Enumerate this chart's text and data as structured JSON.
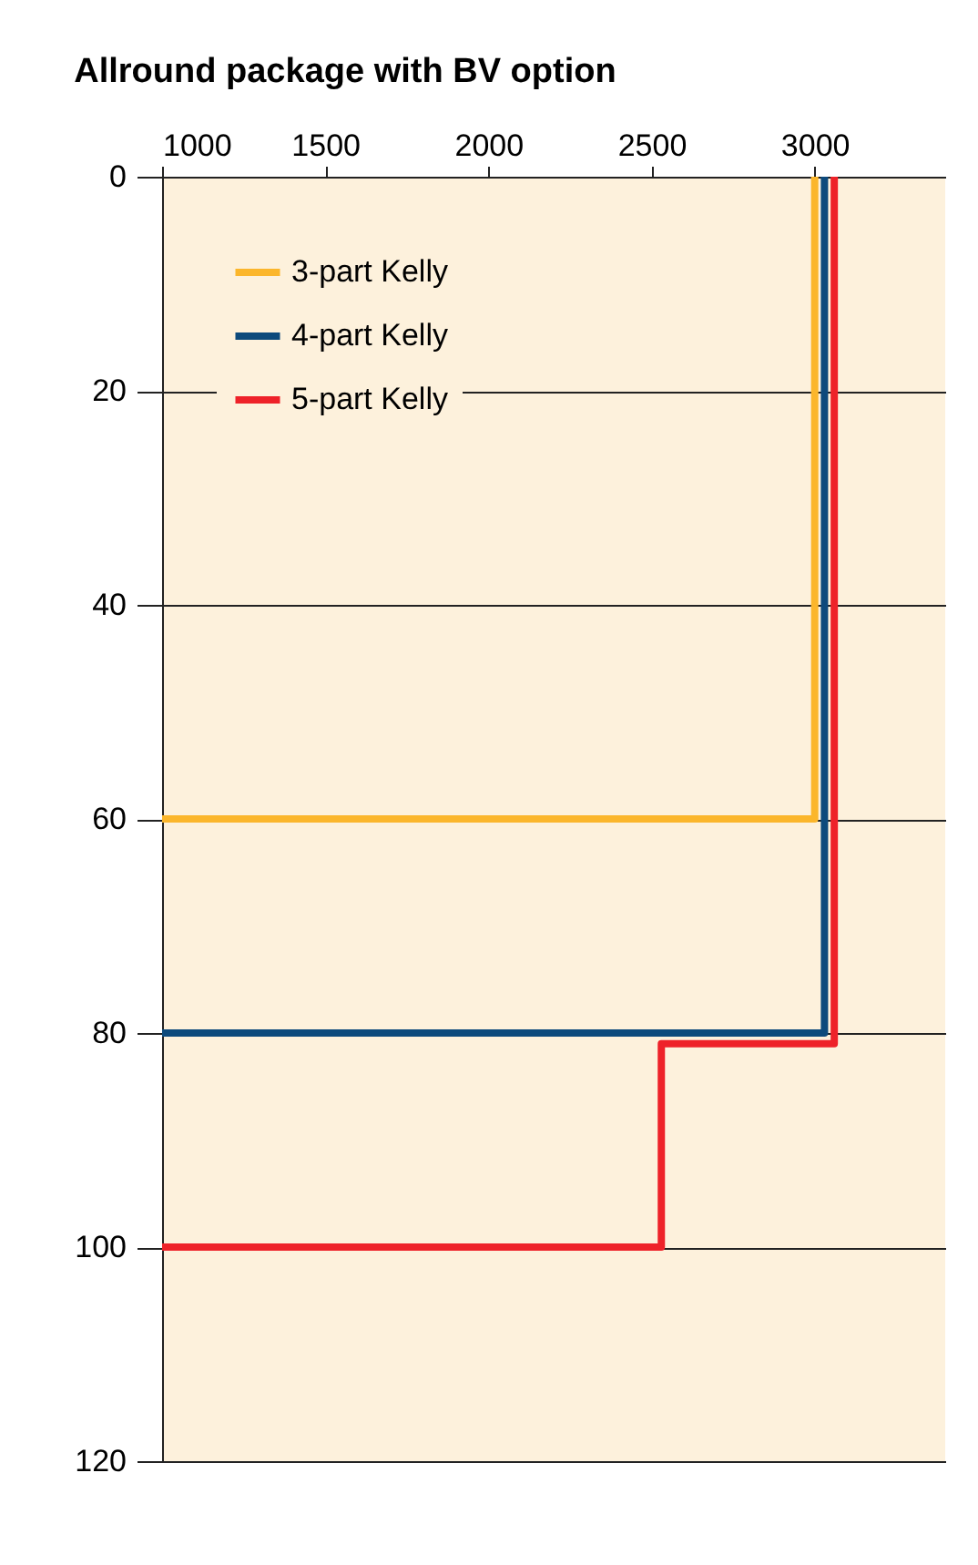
{
  "chart_data": {
    "type": "line",
    "title": "Allround package with BV option",
    "xlim": [
      1000,
      3400
    ],
    "xticks": [
      1000,
      1500,
      2000,
      2500,
      3000
    ],
    "ylim": [
      120,
      0
    ],
    "yticks": [
      0,
      20,
      40,
      60,
      80,
      100,
      120
    ],
    "grid": "y",
    "legend": "top left",
    "line_style": "solid",
    "marker": "none",
    "series": [
      {
        "name": "3-part Kelly",
        "color": "#fbb62b",
        "x": [
          3000,
          3000,
          1000
        ],
        "values": [
          0,
          60,
          60
        ]
      },
      {
        "name": "4-part Kelly",
        "color": "#0d4a7c",
        "x": [
          3030,
          3030,
          1000
        ],
        "values": [
          0,
          80,
          80
        ]
      },
      {
        "name": "5-part Kelly",
        "color": "#ee2229",
        "x": [
          3060,
          3060,
          2530,
          2530,
          1000
        ],
        "values": [
          0,
          81,
          81,
          100,
          100
        ]
      }
    ]
  }
}
